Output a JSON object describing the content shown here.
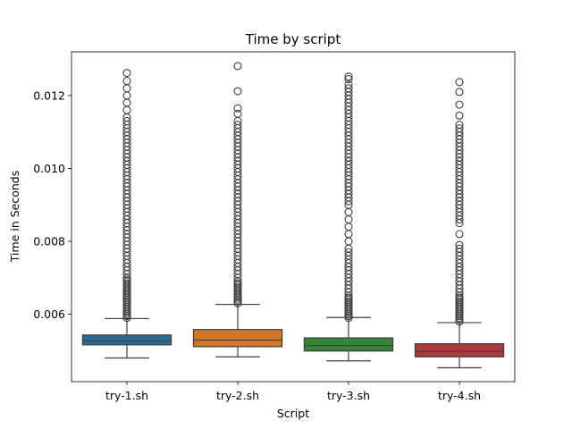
{
  "chart_data": {
    "type": "box",
    "title": "Time by script",
    "xlabel": "Script",
    "ylabel": "Time in Seconds",
    "ylim": [
      0.00415,
      0.0132
    ],
    "yticks": [
      0.006,
      0.008,
      0.01,
      0.012
    ],
    "ytick_labels": [
      "0.006",
      "0.008",
      "0.010",
      "0.012"
    ],
    "categories": [
      "try-1.sh",
      "try-2.sh",
      "try-3.sh",
      "try-4.sh"
    ],
    "colors": [
      "#3274a1",
      "#e1812c",
      "#3a923a",
      "#c03d3e"
    ],
    "boxes": [
      {
        "name": "try-1.sh",
        "whisker_low": 0.0048,
        "q1": 0.00516,
        "median": 0.00527,
        "q3": 0.00543,
        "whisker_high": 0.00588,
        "outliers": [
          0.0059,
          0.00595,
          0.006,
          0.00605,
          0.0061,
          0.00615,
          0.0062,
          0.00625,
          0.0063,
          0.00635,
          0.0064,
          0.00645,
          0.0065,
          0.00655,
          0.0066,
          0.00665,
          0.0067,
          0.00675,
          0.0068,
          0.00685,
          0.0069,
          0.00695,
          0.007,
          0.0071,
          0.0072,
          0.0073,
          0.0074,
          0.0075,
          0.0076,
          0.0077,
          0.0078,
          0.0079,
          0.008,
          0.0081,
          0.0082,
          0.0083,
          0.0084,
          0.0085,
          0.0086,
          0.0087,
          0.0088,
          0.0089,
          0.009,
          0.0091,
          0.0092,
          0.0093,
          0.0094,
          0.0095,
          0.0096,
          0.0097,
          0.0098,
          0.0099,
          0.01,
          0.0101,
          0.0102,
          0.0103,
          0.0104,
          0.0105,
          0.0106,
          0.0107,
          0.0108,
          0.0109,
          0.011,
          0.0111,
          0.0112,
          0.0113,
          0.0114,
          0.0116,
          0.0118,
          0.012,
          0.0122,
          0.0124,
          0.01262
        ]
      },
      {
        "name": "try-2.sh",
        "whisker_low": 0.00483,
        "q1": 0.00511,
        "median": 0.00529,
        "q3": 0.00558,
        "whisker_high": 0.00627,
        "outliers": [
          0.0063,
          0.00635,
          0.0064,
          0.00645,
          0.0065,
          0.00655,
          0.0066,
          0.00665,
          0.0067,
          0.00675,
          0.0068,
          0.00685,
          0.0069,
          0.007,
          0.0071,
          0.0072,
          0.0073,
          0.0074,
          0.0075,
          0.0076,
          0.0077,
          0.0078,
          0.0079,
          0.008,
          0.0081,
          0.0082,
          0.0083,
          0.0084,
          0.0085,
          0.0086,
          0.0087,
          0.0088,
          0.0089,
          0.009,
          0.0091,
          0.0092,
          0.0093,
          0.0094,
          0.0095,
          0.0096,
          0.0097,
          0.0098,
          0.0099,
          0.01,
          0.0101,
          0.0102,
          0.0103,
          0.0104,
          0.0105,
          0.0106,
          0.0107,
          0.0108,
          0.0109,
          0.011,
          0.0111,
          0.0112,
          0.0113,
          0.0115,
          0.01165,
          0.01212,
          0.01281
        ]
      },
      {
        "name": "try-3.sh",
        "whisker_low": 0.00472,
        "q1": 0.00499,
        "median": 0.00514,
        "q3": 0.00535,
        "whisker_high": 0.00591,
        "outliers": [
          0.0059,
          0.00595,
          0.006,
          0.00605,
          0.0061,
          0.00615,
          0.0062,
          0.00625,
          0.0063,
          0.00635,
          0.0064,
          0.00645,
          0.0065,
          0.0066,
          0.0067,
          0.0068,
          0.0069,
          0.007,
          0.0071,
          0.0072,
          0.0073,
          0.0074,
          0.0075,
          0.0076,
          0.0077,
          0.0078,
          0.008,
          0.0082,
          0.0084,
          0.0086,
          0.0088,
          0.009,
          0.0091,
          0.0092,
          0.0093,
          0.0094,
          0.0095,
          0.0096,
          0.0097,
          0.0098,
          0.0099,
          0.01,
          0.0101,
          0.0102,
          0.0103,
          0.0104,
          0.0105,
          0.0106,
          0.0107,
          0.0108,
          0.0109,
          0.011,
          0.0111,
          0.0112,
          0.0113,
          0.0114,
          0.0115,
          0.0116,
          0.0117,
          0.0118,
          0.0119,
          0.012,
          0.0121,
          0.0122,
          0.0123,
          0.01245,
          0.01252
        ]
      },
      {
        "name": "try-4.sh",
        "whisker_low": 0.00453,
        "q1": 0.00483,
        "median": 0.00498,
        "q3": 0.00519,
        "whisker_high": 0.00577,
        "outliers": [
          0.0058,
          0.00585,
          0.0059,
          0.00595,
          0.006,
          0.00605,
          0.0061,
          0.00615,
          0.0062,
          0.00625,
          0.0063,
          0.00635,
          0.0064,
          0.00645,
          0.0065,
          0.0066,
          0.0067,
          0.0068,
          0.0069,
          0.007,
          0.0071,
          0.0072,
          0.0073,
          0.0074,
          0.0075,
          0.0076,
          0.0077,
          0.0078,
          0.0079,
          0.0082,
          0.0085,
          0.0086,
          0.0087,
          0.0088,
          0.0089,
          0.009,
          0.0091,
          0.0092,
          0.0093,
          0.0094,
          0.0095,
          0.0096,
          0.0097,
          0.0098,
          0.0099,
          0.01,
          0.0101,
          0.0102,
          0.0103,
          0.0104,
          0.0105,
          0.0106,
          0.0107,
          0.0108,
          0.0109,
          0.011,
          0.0111,
          0.0112,
          0.01145,
          0.01175,
          0.0121,
          0.01237
        ]
      }
    ],
    "grid": false,
    "legend": "none"
  }
}
